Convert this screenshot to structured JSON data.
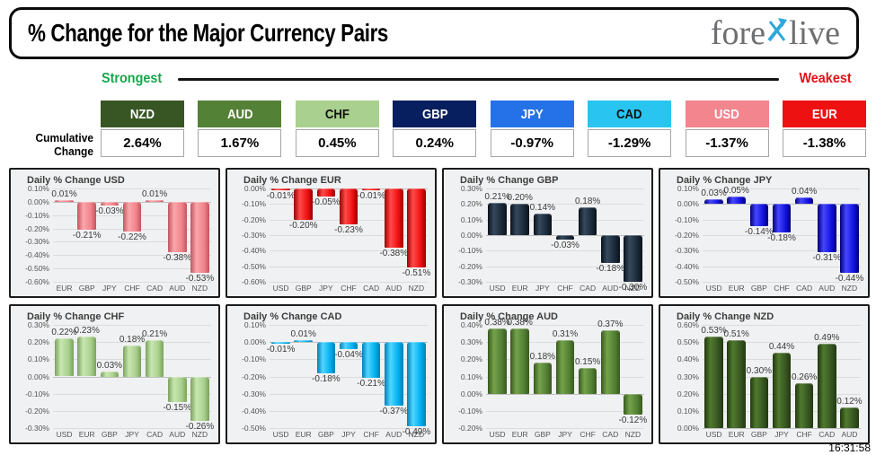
{
  "header": {
    "title": "% Change for the Major Currency Pairs",
    "logo": {
      "left": "fore",
      "right": "live",
      "x_color": "#2fa8dc",
      "text_color": "#6e6f71"
    }
  },
  "scale_bar": {
    "strongest": "Strongest",
    "weakest": "Weakest",
    "strongest_color": "#17a64e",
    "weakest_color": "#e01319"
  },
  "cumulative": {
    "label_top": "Cumulative",
    "label_bottom": "Change",
    "items": [
      {
        "code": "NZD",
        "value": "2.64%",
        "bg": "#375623",
        "fg": "#ffffff"
      },
      {
        "code": "AUD",
        "value": "1.67%",
        "bg": "#538135",
        "fg": "#ffffff"
      },
      {
        "code": "CHF",
        "value": "0.45%",
        "bg": "#a9d08e",
        "fg": "#111111"
      },
      {
        "code": "GBP",
        "value": "0.24%",
        "bg": "#071f5e",
        "fg": "#ffffff"
      },
      {
        "code": "JPY",
        "value": "-0.97%",
        "bg": "#2572e8",
        "fg": "#ffffff"
      },
      {
        "code": "CAD",
        "value": "-1.29%",
        "bg": "#29c5f0",
        "fg": "#111111"
      },
      {
        "code": "USD",
        "value": "-1.37%",
        "bg": "#f2858d",
        "fg": "#ffffff"
      },
      {
        "code": "EUR",
        "value": "-1.38%",
        "bg": "#ee1111",
        "fg": "#ffffff"
      }
    ]
  },
  "chart_data": [
    {
      "type": "bar",
      "id": "usd",
      "title": "Daily % Change USD",
      "grid": true,
      "legend": false,
      "categories": [
        "EUR",
        "GBP",
        "JPY",
        "CHF",
        "CAD",
        "AUD",
        "NZD"
      ],
      "values": [
        0.01,
        -0.21,
        -0.03,
        -0.22,
        0.01,
        -0.38,
        -0.53
      ],
      "ylim": [
        -0.6,
        0.1
      ],
      "yticks": [
        0.1,
        0.0,
        -0.1,
        -0.2,
        -0.3,
        -0.4,
        -0.5,
        -0.6
      ],
      "bar_colors": {
        "light": "#fba6ac",
        "base": "#f1838b",
        "dark": "#c2555e"
      }
    },
    {
      "type": "bar",
      "id": "eur",
      "title": "Daily % Change EUR",
      "grid": true,
      "legend": false,
      "categories": [
        "USD",
        "GBP",
        "JPY",
        "CHF",
        "CAD",
        "AUD",
        "NZD"
      ],
      "values": [
        -0.01,
        -0.2,
        -0.05,
        -0.23,
        -0.01,
        -0.38,
        -0.51
      ],
      "ylim": [
        -0.6,
        0.0
      ],
      "yticks": [
        0.0,
        -0.1,
        -0.2,
        -0.3,
        -0.4,
        -0.5,
        -0.6
      ],
      "bar_colors": {
        "light": "#ff4a4a",
        "base": "#ee1111",
        "dark": "#9a0000"
      }
    },
    {
      "type": "bar",
      "id": "gbp",
      "title": "Daily % Change GBP",
      "grid": true,
      "legend": false,
      "categories": [
        "USD",
        "EUR",
        "JPY",
        "CHF",
        "CAD",
        "AUD",
        "NZD"
      ],
      "values": [
        0.21,
        0.2,
        0.14,
        -0.03,
        0.18,
        -0.18,
        -0.3
      ],
      "ylim": [
        -0.3,
        0.3
      ],
      "yticks": [
        0.3,
        0.2,
        0.1,
        0.0,
        -0.1,
        -0.2,
        -0.3
      ],
      "bar_colors": {
        "light": "#35495e",
        "base": "#1c2a39",
        "dark": "#0a121c"
      }
    },
    {
      "type": "bar",
      "id": "jpy",
      "title": "Daily % Change JPY",
      "grid": true,
      "legend": false,
      "categories": [
        "USD",
        "EUR",
        "GBP",
        "CHF",
        "CAD",
        "AUD",
        "NZD"
      ],
      "values": [
        0.03,
        0.05,
        -0.14,
        -0.18,
        0.04,
        -0.31,
        -0.44
      ],
      "ylim": [
        -0.5,
        0.1
      ],
      "yticks": [
        0.1,
        0.0,
        -0.1,
        -0.2,
        -0.3,
        -0.4,
        -0.5
      ],
      "bar_colors": {
        "light": "#4646ff",
        "base": "#1212dd",
        "dark": "#000078"
      }
    },
    {
      "type": "bar",
      "id": "chf",
      "title": "Daily % Change CHF",
      "grid": true,
      "legend": false,
      "categories": [
        "USD",
        "EUR",
        "GBP",
        "JPY",
        "CAD",
        "AUD",
        "NZD"
      ],
      "values": [
        0.22,
        0.23,
        0.03,
        0.18,
        0.21,
        -0.15,
        -0.26
      ],
      "ylim": [
        -0.3,
        0.3
      ],
      "yticks": [
        0.3,
        0.2,
        0.1,
        0.0,
        -0.1,
        -0.2,
        -0.3
      ],
      "bar_colors": {
        "light": "#c9e6b1",
        "base": "#a9d08e",
        "dark": "#79a25c"
      }
    },
    {
      "type": "bar",
      "id": "cad",
      "title": "Daily % Change CAD",
      "grid": true,
      "legend": false,
      "categories": [
        "USD",
        "EUR",
        "GBP",
        "JPY",
        "CHF",
        "AUD",
        "NZD"
      ],
      "values": [
        -0.01,
        0.01,
        -0.18,
        -0.04,
        -0.21,
        -0.37,
        -0.49
      ],
      "ylim": [
        -0.5,
        0.1
      ],
      "yticks": [
        0.1,
        0.0,
        -0.1,
        -0.2,
        -0.3,
        -0.4,
        -0.5
      ],
      "bar_colors": {
        "light": "#52d5ff",
        "base": "#00b0f0",
        "dark": "#0080b6"
      }
    },
    {
      "type": "bar",
      "id": "aud",
      "title": "Daily % Change AUD",
      "grid": true,
      "legend": false,
      "categories": [
        "USD",
        "EUR",
        "GBP",
        "JPY",
        "CHF",
        "CAD",
        "NZD"
      ],
      "values": [
        0.38,
        0.38,
        0.18,
        0.31,
        0.15,
        0.37,
        -0.12
      ],
      "ylim": [
        -0.2,
        0.4
      ],
      "yticks": [
        0.4,
        0.3,
        0.2,
        0.1,
        0.0,
        -0.1,
        -0.2
      ],
      "bar_colors": {
        "light": "#74a24b",
        "base": "#538135",
        "dark": "#39591f"
      }
    },
    {
      "type": "bar",
      "id": "nzd",
      "title": "Daily % Change NZD",
      "grid": true,
      "legend": false,
      "categories": [
        "USD",
        "EUR",
        "GBP",
        "JPY",
        "CHF",
        "CAD",
        "AUD"
      ],
      "values": [
        0.53,
        0.51,
        0.3,
        0.44,
        0.26,
        0.49,
        0.12
      ],
      "ylim": [
        0.0,
        0.6
      ],
      "yticks": [
        0.6,
        0.5,
        0.4,
        0.3,
        0.2,
        0.1,
        0.0
      ],
      "bar_colors": {
        "light": "#507a2e",
        "base": "#375623",
        "dark": "#22380f"
      }
    }
  ],
  "timestamp": "16:31:58"
}
